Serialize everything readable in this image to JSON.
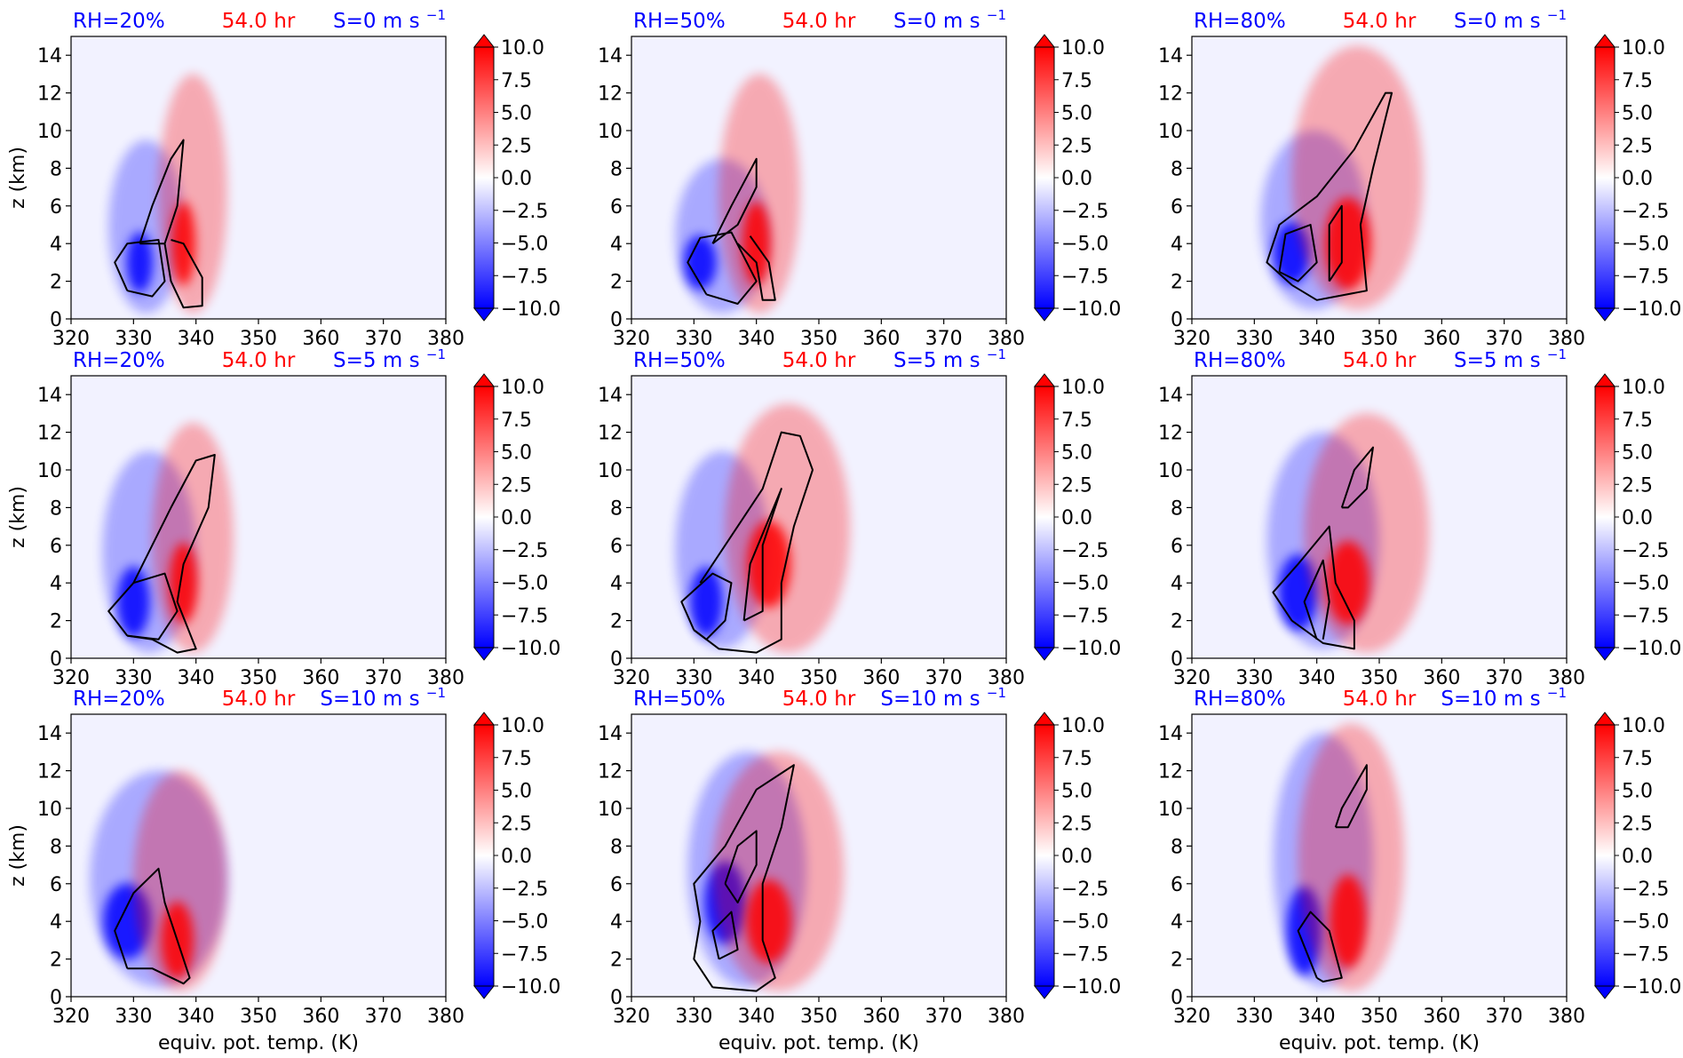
{
  "figure": {
    "time_label": "54.0 hr",
    "xlabel": "equiv. pot. temp. (K)",
    "ylabel": "z (km)",
    "colors": {
      "rh_text": "#0000ff",
      "time_text": "#ff0000",
      "shear_text": "#0000ff",
      "positive": "#ff0000",
      "negative": "#0000ff",
      "contour": "#000000",
      "background": "#f2f2ff"
    }
  },
  "chart_data": {
    "type": "contourf",
    "panel_grid": {
      "rows": 3,
      "cols": 3
    },
    "xlim": [
      320,
      380
    ],
    "ylim": [
      0,
      15
    ],
    "x_ticks": [
      "320",
      "330",
      "340",
      "350",
      "360",
      "370",
      "380"
    ],
    "y_ticks": [
      "0",
      "2",
      "4",
      "6",
      "8",
      "10",
      "12",
      "14"
    ],
    "colorbar": {
      "range": [
        -10,
        10
      ],
      "extend": "both",
      "tick_labels": [
        "10.0",
        "7.5",
        "5.0",
        "2.5",
        "0.0",
        "−2.5",
        "−5.0",
        "−7.5",
        "−10.0"
      ],
      "tick_values": [
        10,
        7.5,
        5,
        2.5,
        0,
        -2.5,
        -5,
        -7.5,
        -10
      ],
      "colormap": "bwr"
    },
    "panels": [
      {
        "rh": "RH=20%",
        "time": "54.0 hr",
        "shear": "S=0 m s",
        "shear_exp": "−1",
        "neg_core": {
          "theta_e": [
            331,
            3
          ],
          "extent": [
            326,
            338,
            0.3,
            9.5
          ]
        },
        "pos_core": {
          "theta_e": [
            338,
            4
          ],
          "extent": [
            334,
            345,
            0.3,
            13
          ]
        },
        "contours": [
          [
            [
              329,
              1.5
            ],
            [
              327,
              3
            ],
            [
              329,
              4
            ],
            [
              334,
              4.2
            ],
            [
              335,
              2
            ],
            [
              333,
              1.2
            ],
            [
              329,
              1.5
            ]
          ],
          [
            [
              331,
              4
            ],
            [
              333,
              6
            ],
            [
              336,
              8.5
            ],
            [
              338,
              9.5
            ],
            [
              337,
              6
            ],
            [
              335,
              4
            ],
            [
              331,
              4
            ]
          ],
          [
            [
              335,
              4
            ],
            [
              336,
              2
            ],
            [
              338,
              0.6
            ],
            [
              341,
              0.7
            ],
            [
              341,
              2.2
            ],
            [
              338,
              4
            ],
            [
              336,
              4.2
            ]
          ]
        ]
      },
      {
        "rh": "RH=50%",
        "time": "54.0 hr",
        "shear": "S=0 m s",
        "shear_exp": "−1",
        "neg_core": {
          "theta_e": [
            331,
            3
          ],
          "extent": [
            327,
            342,
            0.3,
            8.5
          ]
        },
        "pos_core": {
          "theta_e": [
            340,
            4
          ],
          "extent": [
            334,
            347,
            0.3,
            13
          ]
        },
        "contours": [
          [
            [
              332,
              1.3
            ],
            [
              329,
              3
            ],
            [
              331,
              4.3
            ],
            [
              336,
              4.6
            ],
            [
              340,
              2
            ],
            [
              337,
              0.8
            ],
            [
              332,
              1.3
            ]
          ],
          [
            [
              333,
              4
            ],
            [
              336,
              6
            ],
            [
              340,
              8.5
            ],
            [
              340,
              7
            ],
            [
              337,
              5
            ],
            [
              333,
              4
            ]
          ],
          [
            [
              337,
              4
            ],
            [
              340,
              3
            ],
            [
              341,
              1
            ],
            [
              343,
              1
            ],
            [
              342,
              3
            ],
            [
              339,
              4.4
            ]
          ]
        ]
      },
      {
        "rh": "RH=80%",
        "time": "54.0 hr",
        "shear": "S=0 m s",
        "shear_exp": "−1",
        "neg_core": {
          "theta_e": [
            336,
            3.5
          ],
          "extent": [
            331,
            348,
            0.5,
            10
          ]
        },
        "pos_core": {
          "theta_e": [
            345,
            4
          ],
          "extent": [
            336,
            357,
            0.5,
            14.5
          ]
        },
        "contours": [
          [
            [
              336,
              1.8
            ],
            [
              332,
              3
            ],
            [
              334,
              5
            ],
            [
              340,
              6.5
            ],
            [
              346,
              9
            ],
            [
              351,
              12
            ],
            [
              352,
              12
            ],
            [
              349,
              8
            ],
            [
              347,
              5
            ],
            [
              348,
              1.5
            ],
            [
              340,
              1
            ],
            [
              336,
              1.8
            ]
          ],
          [
            [
              334,
              2.5
            ],
            [
              335,
              4.5
            ],
            [
              339,
              5
            ],
            [
              340,
              3
            ],
            [
              337,
              2
            ],
            [
              334,
              2.5
            ]
          ],
          [
            [
              342,
              2
            ],
            [
              342,
              5
            ],
            [
              344,
              6
            ],
            [
              344,
              3
            ],
            [
              342,
              2
            ]
          ]
        ]
      },
      {
        "rh": "RH=20%",
        "time": "54.0 hr",
        "shear": "S=5 m s",
        "shear_exp": "−1",
        "neg_core": {
          "theta_e": [
            330,
            3
          ],
          "extent": [
            325,
            340,
            0.3,
            11
          ]
        },
        "pos_core": {
          "theta_e": [
            338,
            4
          ],
          "extent": [
            333,
            346,
            0.3,
            12.5
          ]
        },
        "contours": [
          [
            [
              329,
              1.2
            ],
            [
              326,
              2.5
            ],
            [
              330,
              4
            ],
            [
              335,
              4.5
            ],
            [
              337,
              2.5
            ],
            [
              334,
              1
            ],
            [
              329,
              1.2
            ]
          ],
          [
            [
              330,
              4
            ],
            [
              333,
              6
            ],
            [
              336,
              8
            ],
            [
              340,
              10.5
            ],
            [
              343,
              10.8
            ],
            [
              342,
              8
            ],
            [
              338,
              5
            ],
            [
              337,
              3
            ],
            [
              340,
              0.5
            ],
            [
              337,
              0.3
            ],
            [
              333,
              1
            ],
            [
              329,
              1.2
            ]
          ]
        ]
      },
      {
        "rh": "RH=50%",
        "time": "54.0 hr",
        "shear": "S=5 m s",
        "shear_exp": "−1",
        "neg_core": {
          "theta_e": [
            332,
            3
          ],
          "extent": [
            327,
            342,
            0.5,
            11
          ]
        },
        "pos_core": {
          "theta_e": [
            342,
            5
          ],
          "extent": [
            335,
            355,
            0.3,
            13.5
          ]
        },
        "contours": [
          [
            [
              330,
              1.5
            ],
            [
              328,
              3
            ],
            [
              333,
              4.5
            ],
            [
              336,
              4
            ],
            [
              335,
              2
            ],
            [
              332,
              1
            ],
            [
              330,
              1.5
            ]
          ],
          [
            [
              331,
              4
            ],
            [
              335,
              6
            ],
            [
              341,
              9
            ],
            [
              344,
              12
            ],
            [
              347,
              11.8
            ],
            [
              349,
              10
            ],
            [
              346,
              7
            ],
            [
              344,
              4
            ],
            [
              344,
              1
            ],
            [
              340,
              0.3
            ],
            [
              334,
              0.5
            ],
            [
              330,
              1.5
            ]
          ],
          [
            [
              338,
              2
            ],
            [
              339,
              5
            ],
            [
              344,
              9
            ],
            [
              341,
              6
            ],
            [
              341,
              2.5
            ],
            [
              338,
              2
            ]
          ]
        ]
      },
      {
        "rh": "RH=80%",
        "time": "54.0 hr",
        "shear": "S=5 m s",
        "shear_exp": "−1",
        "neg_core": {
          "theta_e": [
            337,
            3.5
          ],
          "extent": [
            332,
            350,
            0.5,
            12
          ]
        },
        "pos_core": {
          "theta_e": [
            345,
            4
          ],
          "extent": [
            338,
            358,
            0.3,
            13
          ]
        },
        "contours": [
          [
            [
              336,
              2
            ],
            [
              333,
              3.5
            ],
            [
              337,
              5
            ],
            [
              342,
              7
            ],
            [
              343,
              4
            ],
            [
              346,
              2
            ],
            [
              346,
              0.5
            ],
            [
              341,
              0.8
            ],
            [
              336,
              2
            ]
          ],
          [
            [
              340,
              1
            ],
            [
              338,
              3
            ],
            [
              341,
              5.2
            ],
            [
              342,
              3
            ],
            [
              341,
              1
            ]
          ],
          [
            [
              344,
              8
            ],
            [
              346,
              10
            ],
            [
              349,
              11.2
            ],
            [
              348,
              9
            ],
            [
              345,
              8
            ],
            [
              344,
              8
            ]
          ]
        ]
      },
      {
        "rh": "RH=20%",
        "time": "54.0 hr",
        "shear": "S=10 m s",
        "shear_exp": "−1",
        "neg_core": {
          "theta_e": [
            329,
            4
          ],
          "extent": [
            323,
            345,
            0.5,
            12
          ]
        },
        "pos_core": {
          "theta_e": [
            337,
            3
          ],
          "extent": [
            330,
            345,
            0.3,
            12
          ]
        },
        "contours": [
          [
            [
              329,
              1.5
            ],
            [
              327,
              3.5
            ],
            [
              330,
              5.5
            ],
            [
              334,
              6.8
            ],
            [
              335,
              5
            ],
            [
              337,
              3
            ],
            [
              339,
              1
            ],
            [
              338,
              0.7
            ],
            [
              333,
              1.5
            ],
            [
              329,
              1.5
            ]
          ]
        ]
      },
      {
        "rh": "RH=50%",
        "time": "54.0 hr",
        "shear": "S=10 m s",
        "shear_exp": "−1",
        "neg_core": {
          "theta_e": [
            335,
            5
          ],
          "extent": [
            329,
            348,
            0.5,
            13
          ]
        },
        "pos_core": {
          "theta_e": [
            342,
            4
          ],
          "extent": [
            333,
            354,
            0.3,
            13
          ]
        },
        "contours": [
          [
            [
              333,
              0.5
            ],
            [
              330,
              2
            ],
            [
              331,
              4
            ],
            [
              330,
              6
            ],
            [
              335,
              8
            ],
            [
              340,
              11
            ],
            [
              346,
              12.3
            ],
            [
              344,
              9
            ],
            [
              341,
              6
            ],
            [
              341,
              3
            ],
            [
              343,
              1
            ],
            [
              340,
              0.3
            ],
            [
              333,
              0.5
            ]
          ],
          [
            [
              334,
              2
            ],
            [
              333,
              3.5
            ],
            [
              336,
              4.5
            ],
            [
              337,
              2.5
            ],
            [
              334,
              2
            ]
          ],
          [
            [
              335,
              6
            ],
            [
              337,
              8
            ],
            [
              340,
              8.8
            ],
            [
              340,
              7
            ],
            [
              337,
              5
            ],
            [
              335,
              6
            ]
          ]
        ]
      },
      {
        "rh": "RH=80%",
        "time": "54.0 hr",
        "shear": "S=10 m s",
        "shear_exp": "−1",
        "neg_core": {
          "theta_e": [
            338,
            3.5
          ],
          "extent": [
            333,
            349,
            0.5,
            14
          ]
        },
        "pos_core": {
          "theta_e": [
            345,
            4
          ],
          "extent": [
            337,
            354,
            0.3,
            14.5
          ]
        },
        "contours": [
          [
            [
              340,
              1
            ],
            [
              337,
              3.5
            ],
            [
              339,
              4.5
            ],
            [
              342,
              3.5
            ],
            [
              344,
              1
            ],
            [
              341,
              0.8
            ],
            [
              340,
              1
            ]
          ],
          [
            [
              343,
              9
            ],
            [
              344,
              10
            ],
            [
              348,
              12.3
            ],
            [
              348,
              11
            ],
            [
              345,
              9
            ],
            [
              343,
              9
            ]
          ]
        ]
      }
    ]
  }
}
